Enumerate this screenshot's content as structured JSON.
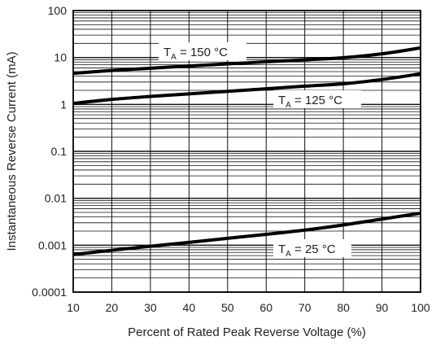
{
  "chart_data": {
    "type": "line",
    "xlabel": "Percent of Rated Peak Reverse Voltage (%)",
    "ylabel": "Instantaneous Reverse Current (mA)",
    "xlim": [
      10,
      100
    ],
    "ylim": [
      0.0001,
      100
    ],
    "yscale": "log",
    "grid": "on",
    "x_ticks": [
      10,
      20,
      30,
      40,
      50,
      60,
      70,
      80,
      90,
      100
    ],
    "x_tick_labels": [
      "10",
      "20",
      "30",
      "40",
      "50",
      "60",
      "70",
      "80",
      "90",
      "100"
    ],
    "y_ticks": [
      0.0001,
      0.001,
      0.01,
      0.1,
      1,
      10,
      100
    ],
    "y_tick_labels": [
      "0.0001",
      "0.001",
      "0.01",
      "0.1",
      "1",
      "10",
      "100"
    ],
    "series": [
      {
        "label_main": "T",
        "label_sub": "A",
        "label_rest": " = 150 °C",
        "x": [
          10,
          20,
          30,
          40,
          50,
          60,
          70,
          80,
          90,
          100
        ],
        "values": [
          4.6,
          5.3,
          5.9,
          6.6,
          7.3,
          8.1,
          8.9,
          9.9,
          12.0,
          16.0
        ]
      },
      {
        "label_main": "T",
        "label_sub": "A",
        "label_rest": " = 125 °C",
        "x": [
          10,
          20,
          30,
          40,
          50,
          60,
          70,
          80,
          90,
          100
        ],
        "values": [
          1.05,
          1.28,
          1.48,
          1.68,
          1.9,
          2.15,
          2.45,
          2.75,
          3.4,
          4.5
        ]
      },
      {
        "label_main": "T",
        "label_sub": "A",
        "label_rest": " = 25 °C",
        "x": [
          10,
          20,
          30,
          40,
          50,
          60,
          70,
          80,
          90,
          100
        ],
        "values": [
          0.00063,
          0.00078,
          0.00095,
          0.00115,
          0.0014,
          0.0017,
          0.0021,
          0.0027,
          0.0036,
          0.0048
        ]
      }
    ]
  }
}
